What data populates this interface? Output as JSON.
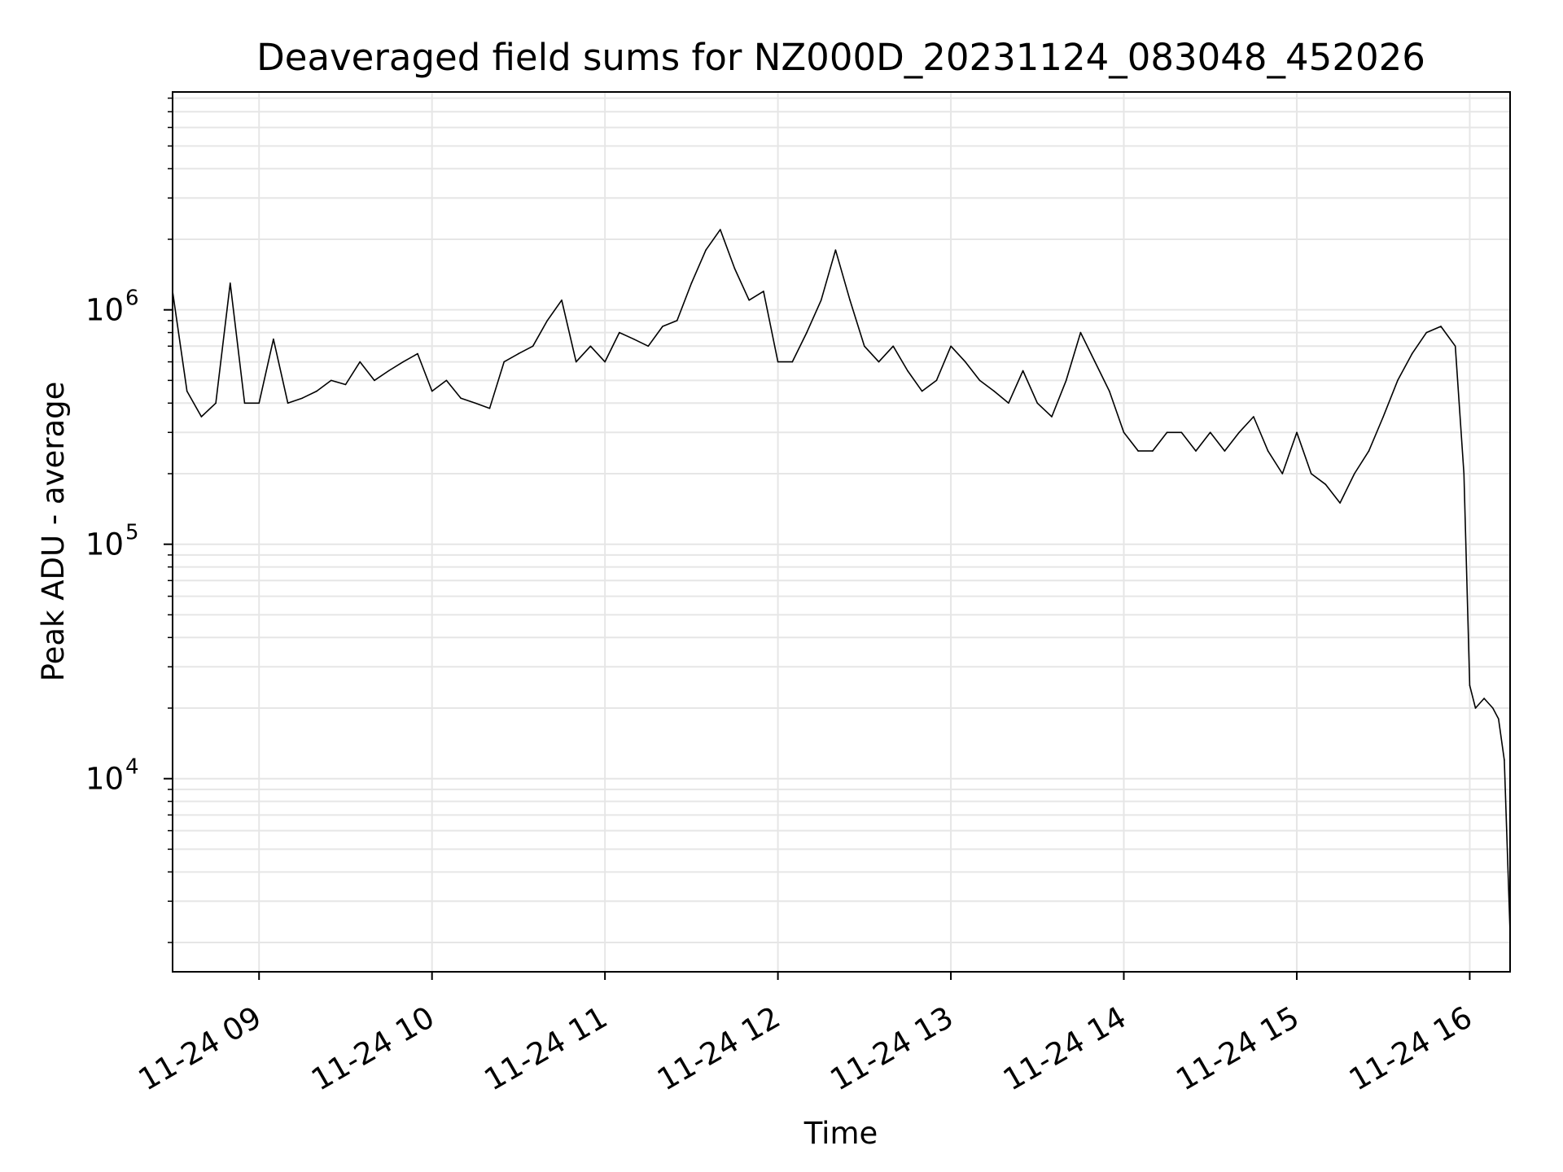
{
  "chart_data": {
    "type": "line",
    "title": "Deaveraged field sums for NZ000D_20231124_083048_452026",
    "xlabel": "Time",
    "ylabel": "Peak ADU - average",
    "xscale": "time",
    "yscale": "log",
    "xlim": [
      "2023-11-24 08:30",
      "2023-11-24 16:14"
    ],
    "ylim": [
      1500,
      8500000
    ],
    "x_ticks": [
      {
        "value": "2023-11-24 09:00",
        "label": "11-24 09"
      },
      {
        "value": "2023-11-24 10:00",
        "label": "11-24 10"
      },
      {
        "value": "2023-11-24 11:00",
        "label": "11-24 11"
      },
      {
        "value": "2023-11-24 12:00",
        "label": "11-24 12"
      },
      {
        "value": "2023-11-24 13:00",
        "label": "11-24 13"
      },
      {
        "value": "2023-11-24 14:00",
        "label": "11-24 14"
      },
      {
        "value": "2023-11-24 15:00",
        "label": "11-24 15"
      },
      {
        "value": "2023-11-24 16:00",
        "label": "11-24 16"
      }
    ],
    "y_ticks": [
      {
        "value": 10000,
        "base": "10",
        "exp": "4"
      },
      {
        "value": 100000,
        "base": "10",
        "exp": "5"
      },
      {
        "value": 1000000,
        "base": "10",
        "exp": "6"
      }
    ],
    "grid": true,
    "line_color": "#000000",
    "grid_color": "#e6e6e6",
    "series": [
      {
        "x": [
          "2023-11-24 08:30",
          "2023-11-24 08:35",
          "2023-11-24 08:40",
          "2023-11-24 08:45",
          "2023-11-24 08:50",
          "2023-11-24 08:55",
          "2023-11-24 09:00",
          "2023-11-24 09:05",
          "2023-11-24 09:10",
          "2023-11-24 09:15",
          "2023-11-24 09:20",
          "2023-11-24 09:25",
          "2023-11-24 09:30",
          "2023-11-24 09:35",
          "2023-11-24 09:40",
          "2023-11-24 09:45",
          "2023-11-24 09:50",
          "2023-11-24 09:55",
          "2023-11-24 10:00",
          "2023-11-24 10:05",
          "2023-11-24 10:10",
          "2023-11-24 10:15",
          "2023-11-24 10:20",
          "2023-11-24 10:25",
          "2023-11-24 10:30",
          "2023-11-24 10:35",
          "2023-11-24 10:40",
          "2023-11-24 10:45",
          "2023-11-24 10:50",
          "2023-11-24 10:55",
          "2023-11-24 11:00",
          "2023-11-24 11:05",
          "2023-11-24 11:10",
          "2023-11-24 11:15",
          "2023-11-24 11:20",
          "2023-11-24 11:25",
          "2023-11-24 11:30",
          "2023-11-24 11:35",
          "2023-11-24 11:40",
          "2023-11-24 11:45",
          "2023-11-24 11:50",
          "2023-11-24 11:55",
          "2023-11-24 12:00",
          "2023-11-24 12:05",
          "2023-11-24 12:10",
          "2023-11-24 12:15",
          "2023-11-24 12:20",
          "2023-11-24 12:25",
          "2023-11-24 12:30",
          "2023-11-24 12:35",
          "2023-11-24 12:40",
          "2023-11-24 12:45",
          "2023-11-24 12:50",
          "2023-11-24 12:55",
          "2023-11-24 13:00",
          "2023-11-24 13:05",
          "2023-11-24 13:10",
          "2023-11-24 13:15",
          "2023-11-24 13:20",
          "2023-11-24 13:25",
          "2023-11-24 13:30",
          "2023-11-24 13:35",
          "2023-11-24 13:40",
          "2023-11-24 13:45",
          "2023-11-24 13:50",
          "2023-11-24 13:55",
          "2023-11-24 14:00",
          "2023-11-24 14:05",
          "2023-11-24 14:10",
          "2023-11-24 14:15",
          "2023-11-24 14:20",
          "2023-11-24 14:25",
          "2023-11-24 14:30",
          "2023-11-24 14:35",
          "2023-11-24 14:40",
          "2023-11-24 14:45",
          "2023-11-24 14:50",
          "2023-11-24 14:55",
          "2023-11-24 15:00",
          "2023-11-24 15:05",
          "2023-11-24 15:10",
          "2023-11-24 15:15",
          "2023-11-24 15:20",
          "2023-11-24 15:25",
          "2023-11-24 15:30",
          "2023-11-24 15:35",
          "2023-11-24 15:40",
          "2023-11-24 15:45",
          "2023-11-24 15:50",
          "2023-11-24 15:55",
          "2023-11-24 15:58",
          "2023-11-24 16:00",
          "2023-11-24 16:02",
          "2023-11-24 16:05",
          "2023-11-24 16:08",
          "2023-11-24 16:10",
          "2023-11-24 16:12",
          "2023-11-24 16:14"
        ],
        "values": [
          1200000,
          450000,
          350000,
          400000,
          1300000,
          400000,
          400000,
          750000,
          400000,
          420000,
          450000,
          500000,
          480000,
          600000,
          500000,
          550000,
          600000,
          650000,
          450000,
          500000,
          420000,
          400000,
          380000,
          600000,
          650000,
          700000,
          900000,
          1100000,
          600000,
          700000,
          600000,
          800000,
          750000,
          700000,
          850000,
          900000,
          1300000,
          1800000,
          2200000,
          1500000,
          1100000,
          1200000,
          600000,
          600000,
          800000,
          1100000,
          1800000,
          1100000,
          700000,
          600000,
          700000,
          550000,
          450000,
          500000,
          700000,
          600000,
          500000,
          450000,
          400000,
          550000,
          400000,
          350000,
          500000,
          800000,
          600000,
          450000,
          300000,
          250000,
          250000,
          300000,
          300000,
          250000,
          300000,
          250000,
          300000,
          350000,
          250000,
          200000,
          300000,
          200000,
          180000,
          150000,
          200000,
          250000,
          350000,
          500000,
          650000,
          800000,
          850000,
          700000,
          200000,
          25000,
          20000,
          22000,
          20000,
          18000,
          12000,
          2200
        ]
      }
    ]
  }
}
